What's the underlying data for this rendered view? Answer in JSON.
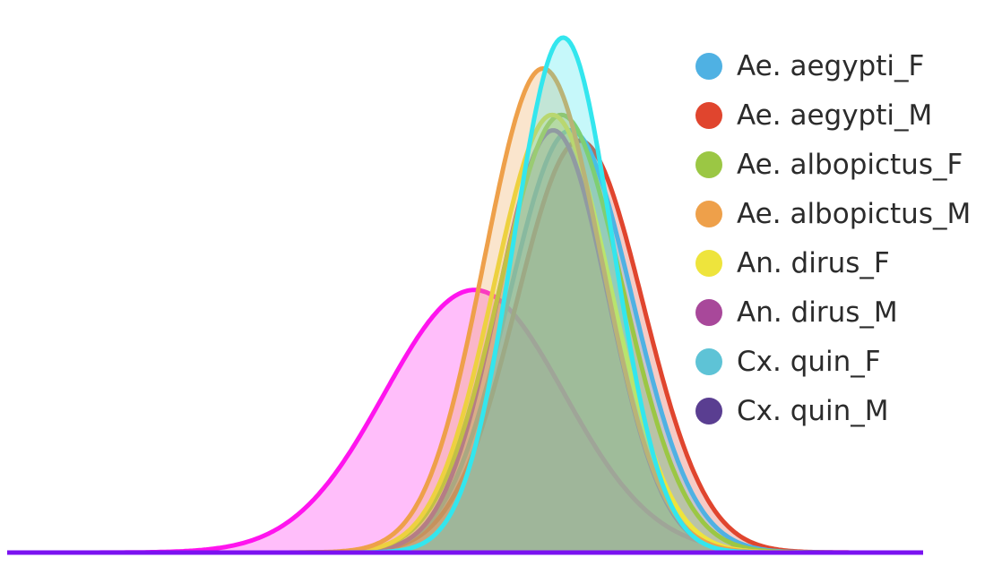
{
  "chart_data": {
    "type": "area",
    "title": "",
    "xlabel": "",
    "ylabel": "",
    "xlim": [
      0,
      100
    ],
    "ylim": [
      0,
      1.0
    ],
    "grid": false,
    "axes_visible": false,
    "legend_position": "top-right",
    "curve_type": "density",
    "series": [
      {
        "name": "Ae. aegypti_F",
        "color": "#4fb1e3",
        "mean": 61.5,
        "sd": 6.7,
        "peak": 0.82
      },
      {
        "name": "Ae. aegypti_M",
        "color": "#e0452e",
        "mean": 62.5,
        "sd": 6.9,
        "peak": 0.8
      },
      {
        "name": "Ae. albopictus_F",
        "color": "#9bc744",
        "mean": 60.5,
        "sd": 6.7,
        "peak": 0.85
      },
      {
        "name": "Ae. albopictus_M",
        "color": "#eea04a",
        "mean": 58.5,
        "sd": 6.4,
        "peak": 0.94
      },
      {
        "name": "An. dirus_F",
        "color": "#eee43c",
        "mean": 59.5,
        "sd": 6.4,
        "peak": 0.85
      },
      {
        "name": "An. dirus_M",
        "color": "#ff14ee",
        "mean": 51.0,
        "sd": 9.8,
        "peak": 0.51
      },
      {
        "name": "Cx. quin_F",
        "color": "#33e6ee",
        "mean": 60.7,
        "sd": 5.4,
        "peak": 1.0
      },
      {
        "name": "Cx. quin_M",
        "color": "#7a12f0",
        "mean": 59.6,
        "sd": 6.0,
        "peak": 0.82
      }
    ],
    "legend": [
      {
        "label": "Ae. aegypti_F",
        "color": "#4fb1e3"
      },
      {
        "label": "Ae. aegypti_M",
        "color": "#e0452e"
      },
      {
        "label": "Ae. albopictus_F",
        "color": "#9bc744"
      },
      {
        "label": "Ae. albopictus_M",
        "color": "#eea04a"
      },
      {
        "label": "An. dirus_F",
        "color": "#eee43c"
      },
      {
        "label": "An. dirus_M",
        "color": "#a8489a"
      },
      {
        "label": "Cx. quin_F",
        "color": "#5ec3d6"
      },
      {
        "label": "Cx. quin_M",
        "color": "#5a3e91"
      }
    ]
  }
}
